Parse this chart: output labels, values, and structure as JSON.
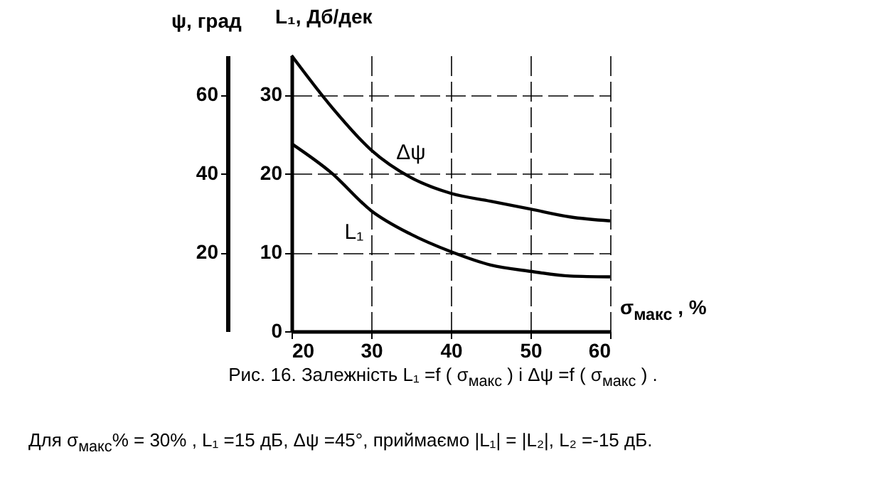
{
  "chart_data": {
    "type": "line",
    "xlabel": "σ$_{макс}$ , %",
    "ylabel": "L₁, Дб/дек",
    "y2label": "ψ, град",
    "x": [
      20,
      25,
      30,
      35,
      40,
      45,
      50,
      55,
      60
    ],
    "series": [
      {
        "name": "Δψ",
        "color": "#000000",
        "axis": "y2",
        "values": [
          70,
          57,
          46,
          39,
          35,
          33,
          31,
          29,
          28
        ]
      },
      {
        "name": "L₁",
        "color": "#000000",
        "values": [
          23.8,
          20.1,
          15.3,
          12.3,
          10.1,
          8.4,
          7.6,
          7.0,
          6.9
        ]
      }
    ],
    "xlim": [
      20,
      60
    ],
    "xticks": [
      20,
      30,
      40,
      50,
      60
    ],
    "ylim": [
      0,
      35
    ],
    "yticks": [
      0,
      10,
      20,
      30
    ],
    "y2lim": [
      0,
      70
    ],
    "y2ticks": [
      20,
      40,
      60
    ],
    "grid": true,
    "annotations": [
      "Рис. 16. Залежність L₁ =f ( σ$_{макс}$ )  і Δψ =f ( σ$_{макс}$ ) .",
      "Для σ$_{макс}$% = 30% , L₁ =15 дБ, Δψ =45°, приймаємо |L₁| = |L₂|, L₂ =-15 дБ."
    ]
  }
}
